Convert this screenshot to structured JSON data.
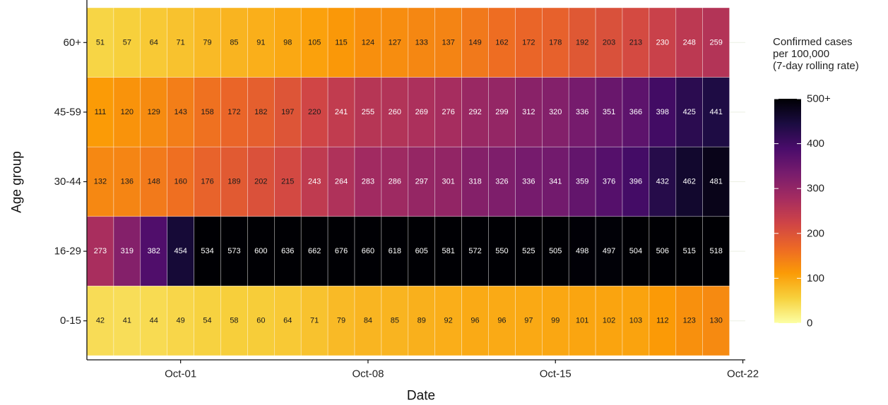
{
  "chart_data": {
    "type": "heatmap",
    "xlabel": "Date",
    "ylabel": "Age group",
    "x_tick_labels": [
      "Oct-01",
      "Oct-08",
      "Oct-15",
      "Oct-22"
    ],
    "x_tick_day_index": [
      4,
      11,
      18,
      25
    ],
    "rows": [
      "60+",
      "45-59",
      "30-44",
      "16-29",
      "0-15"
    ],
    "values": [
      [
        51,
        57,
        64,
        71,
        79,
        85,
        91,
        98,
        105,
        115,
        124,
        127,
        133,
        137,
        149,
        162,
        172,
        178,
        192,
        203,
        213,
        230,
        248,
        259
      ],
      [
        111,
        120,
        129,
        143,
        158,
        172,
        182,
        197,
        220,
        241,
        255,
        260,
        269,
        276,
        292,
        299,
        312,
        320,
        336,
        351,
        366,
        398,
        425,
        441
      ],
      [
        132,
        136,
        148,
        160,
        176,
        189,
        202,
        215,
        243,
        264,
        283,
        286,
        297,
        301,
        318,
        326,
        336,
        341,
        359,
        376,
        396,
        432,
        462,
        481
      ],
      [
        273,
        319,
        382,
        454,
        534,
        573,
        600,
        636,
        662,
        676,
        660,
        618,
        605,
        581,
        572,
        550,
        525,
        505,
        498,
        497,
        504,
        506,
        515,
        518
      ],
      [
        42,
        41,
        44,
        49,
        54,
        58,
        60,
        64,
        71,
        79,
        84,
        85,
        89,
        92,
        96,
        96,
        97,
        99,
        101,
        102,
        103,
        112,
        123,
        130
      ]
    ],
    "legend": {
      "title_lines": [
        "Confirmed cases",
        " per 100,000",
        " (7-day rolling rate)"
      ],
      "ticks": [
        "0",
        "100",
        "200",
        "300",
        "400",
        "500+"
      ],
      "max": 500
    },
    "colorscale": [
      "#fcffa4",
      "#f7d13d",
      "#fb9b06",
      "#ed6925",
      "#cf4446",
      "#a52c60",
      "#781c6d",
      "#4a0c6b",
      "#1b0c41",
      "#000004"
    ]
  }
}
